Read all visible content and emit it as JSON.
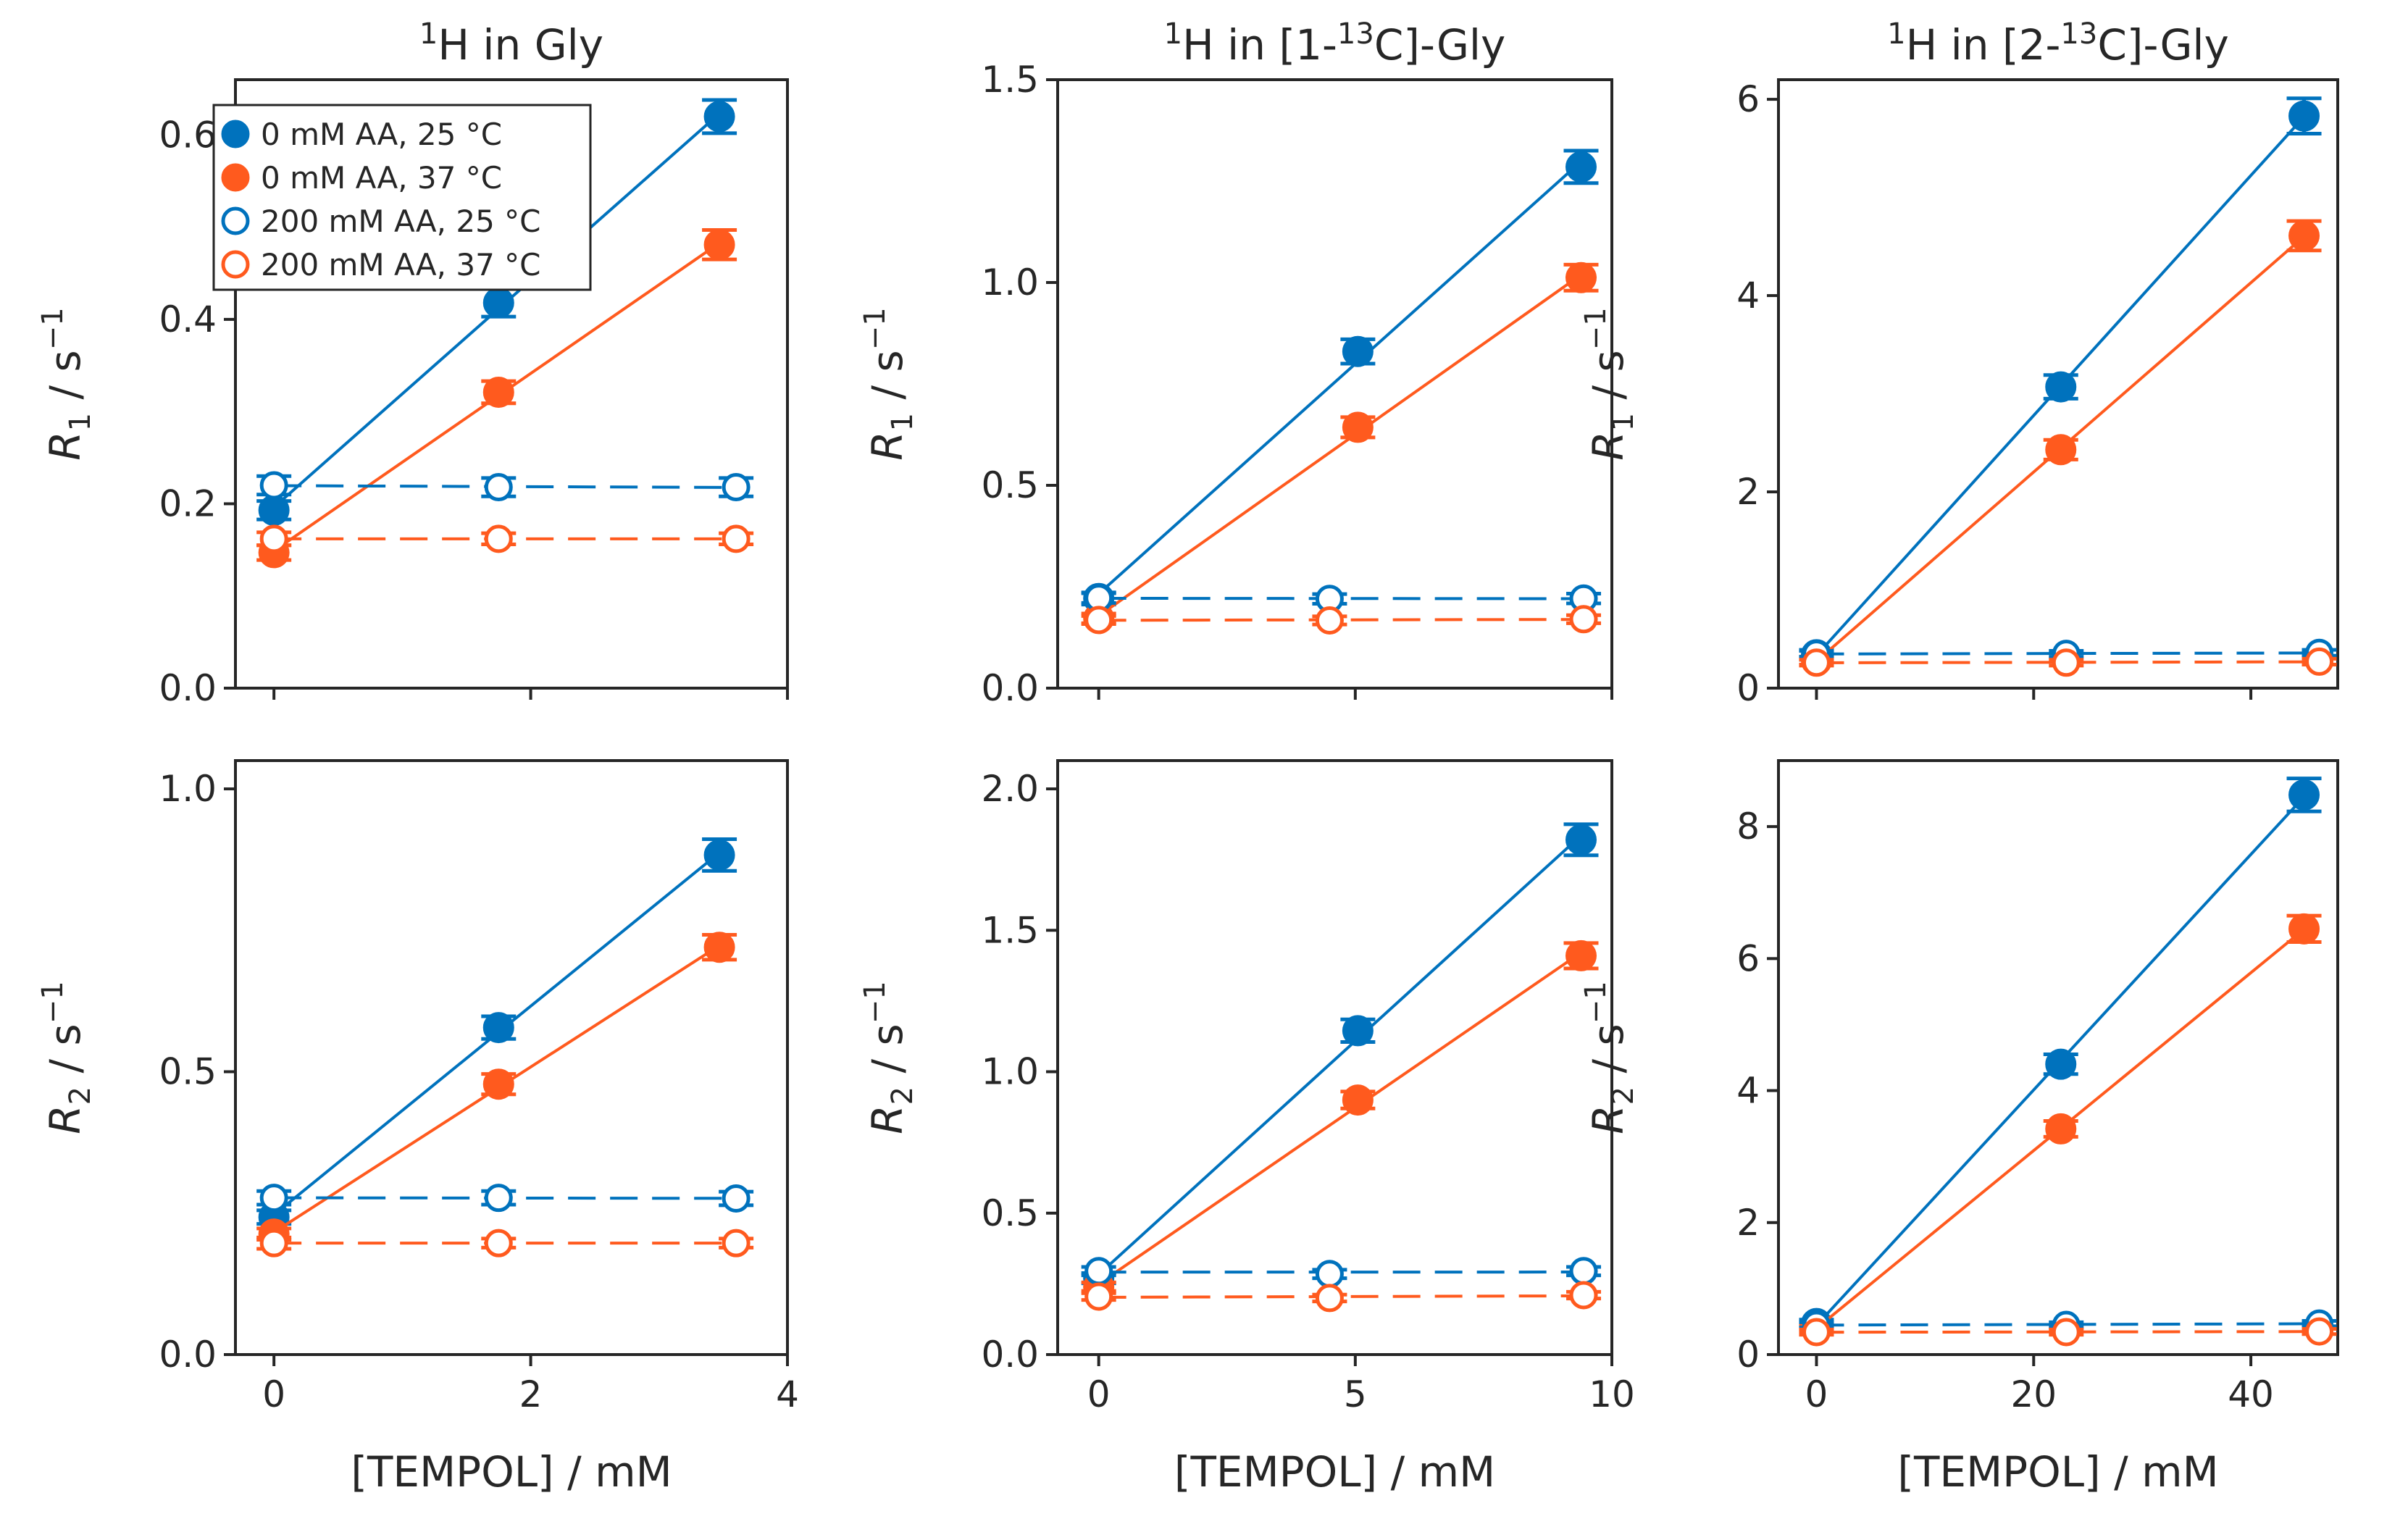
{
  "colors": {
    "blue": "#0072bd",
    "orange": "#ff5a1e",
    "axis": "#262626"
  },
  "legend": [
    {
      "label": "0 mM AA, 25 °C",
      "series": "0mM_25",
      "filled": true,
      "color": "#0072bd"
    },
    {
      "label": "0 mM AA, 37 °C",
      "series": "0mM_37",
      "filled": true,
      "color": "#ff5a1e"
    },
    {
      "label": "200 mM AA, 25 °C",
      "series": "200mM_25",
      "filled": false,
      "color": "#0072bd"
    },
    {
      "label": "200 mM AA, 37 °C",
      "series": "200mM_37",
      "filled": false,
      "color": "#ff5a1e"
    }
  ],
  "chart_data": [
    {
      "id": "r1-gly",
      "type": "scatter",
      "title_sup": "1",
      "title": "H in Gly",
      "ylabel": "R",
      "ylabel_sub": "1",
      "ylabel_unit": " / s",
      "ylabel_exp": "−1",
      "xlabel": "",
      "xlim": [
        -0.3,
        4
      ],
      "ylim": [
        0,
        0.66
      ],
      "xticks": [
        0,
        2,
        4
      ],
      "xtick_labels": [],
      "yticks": [
        0,
        0.2,
        0.4,
        0.6
      ],
      "ytick_labels": [
        "0.0",
        "0.2",
        "0.4",
        "0.6"
      ],
      "series": [
        {
          "name": "0 mM AA, 25 °C",
          "filled": true,
          "color": "#0072bd",
          "x": [
            0,
            1.75,
            3.47
          ],
          "y": [
            0.193,
            0.418,
            0.62
          ],
          "err": [
            0.01,
            0.015,
            0.018
          ]
        },
        {
          "name": "0 mM AA, 37 °C",
          "filled": true,
          "color": "#ff5a1e",
          "x": [
            0,
            1.75,
            3.47
          ],
          "y": [
            0.147,
            0.321,
            0.481
          ],
          "err": [
            0.008,
            0.012,
            0.016
          ]
        },
        {
          "name": "200 mM AA, 25 °C",
          "filled": false,
          "color": "#0072bd",
          "x": [
            0,
            1.75,
            3.6
          ],
          "y": [
            0.22,
            0.218,
            0.218
          ],
          "err": [
            0.01,
            0.01,
            0.01
          ]
        },
        {
          "name": "200 mM AA, 37 °C",
          "filled": false,
          "color": "#ff5a1e",
          "x": [
            0,
            1.75,
            3.6
          ],
          "y": [
            0.162,
            0.162,
            0.162
          ],
          "err": [
            0.007,
            0.006,
            0.006
          ]
        }
      ]
    },
    {
      "id": "r1-1c",
      "type": "scatter",
      "title_sup": "1",
      "title": "H in [1-",
      "title_sup2": "13",
      "title2": "C]-Gly",
      "ylabel": "R",
      "ylabel_sub": "1",
      "ylabel_unit": " / s",
      "ylabel_exp": "−1",
      "xlabel": "",
      "xlim": [
        -0.8,
        10
      ],
      "ylim": [
        0,
        1.5
      ],
      "xticks": [
        0,
        5,
        10
      ],
      "xtick_labels": [],
      "yticks": [
        0,
        0.5,
        1.0,
        1.5
      ],
      "ytick_labels": [
        "0.0",
        "0.5",
        "1.0",
        "1.5"
      ],
      "series": [
        {
          "name": "0 mM AA, 25 °C",
          "filled": true,
          "color": "#0072bd",
          "x": [
            0,
            5.05,
            9.4
          ],
          "y": [
            0.221,
            0.83,
            1.285
          ],
          "err": [
            0.015,
            0.03,
            0.04
          ]
        },
        {
          "name": "0 mM AA, 37 °C",
          "filled": true,
          "color": "#ff5a1e",
          "x": [
            0,
            5.05,
            9.4
          ],
          "y": [
            0.172,
            0.643,
            1.012
          ],
          "err": [
            0.012,
            0.025,
            0.032
          ]
        },
        {
          "name": "200 mM AA, 25 °C",
          "filled": false,
          "color": "#0072bd",
          "x": [
            0,
            4.5,
            9.45
          ],
          "y": [
            0.222,
            0.22,
            0.221
          ],
          "err": [
            0.012,
            0.012,
            0.012
          ]
        },
        {
          "name": "200 mM AA, 37 °C",
          "filled": false,
          "color": "#ff5a1e",
          "x": [
            0,
            4.5,
            9.45
          ],
          "y": [
            0.168,
            0.167,
            0.17
          ],
          "err": [
            0.01,
            0.01,
            0.01
          ]
        }
      ]
    },
    {
      "id": "r1-2c",
      "type": "scatter",
      "title_sup": "1",
      "title": "H in [2-",
      "title_sup2": "13",
      "title2": "C]-Gly",
      "ylabel": "R",
      "ylabel_sub": "1",
      "ylabel_unit": " / s",
      "ylabel_exp": "−1",
      "xlabel": "",
      "xlim": [
        -3.5,
        48
      ],
      "ylim": [
        0,
        6.2
      ],
      "xticks": [
        0,
        20,
        40
      ],
      "xtick_labels": [],
      "yticks": [
        0,
        2,
        4,
        6
      ],
      "ytick_labels": [
        "0",
        "2",
        "4",
        "6"
      ],
      "series": [
        {
          "name": "0 mM AA, 25 °C",
          "filled": true,
          "color": "#0072bd",
          "x": [
            0,
            22.5,
            44.9
          ],
          "y": [
            0.34,
            3.07,
            5.83
          ],
          "err": [
            0.05,
            0.12,
            0.18
          ]
        },
        {
          "name": "0 mM AA, 37 °C",
          "filled": true,
          "color": "#ff5a1e",
          "x": [
            0,
            22.5,
            44.9
          ],
          "y": [
            0.28,
            2.43,
            4.61
          ],
          "err": [
            0.04,
            0.1,
            0.15
          ]
        },
        {
          "name": "200 mM AA, 25 °C",
          "filled": false,
          "color": "#0072bd",
          "x": [
            0,
            23,
            46.3
          ],
          "y": [
            0.35,
            0.35,
            0.36
          ],
          "err": [
            0.03,
            0.03,
            0.03
          ]
        },
        {
          "name": "200 mM AA, 37 °C",
          "filled": false,
          "color": "#ff5a1e",
          "x": [
            0,
            23,
            46.3
          ],
          "y": [
            0.26,
            0.26,
            0.27
          ],
          "err": [
            0.03,
            0.03,
            0.03
          ]
        }
      ]
    },
    {
      "id": "r2-gly",
      "type": "scatter",
      "ylabel": "R",
      "ylabel_sub": "2",
      "ylabel_unit": " / s",
      "ylabel_exp": "−1",
      "xlabel": "[TEMPOL] / mM",
      "xlim": [
        -0.3,
        4
      ],
      "ylim": [
        0,
        1.05
      ],
      "xticks": [
        0,
        2,
        4
      ],
      "xtick_labels": [
        "0",
        "2",
        "4"
      ],
      "yticks": [
        0,
        0.5,
        1.0
      ],
      "ytick_labels": [
        "0.0",
        "0.5",
        "1.0"
      ],
      "series": [
        {
          "name": "0 mM AA, 25 °C",
          "filled": true,
          "color": "#0072bd",
          "x": [
            0,
            1.75,
            3.47
          ],
          "y": [
            0.243,
            0.578,
            0.883
          ],
          "err": [
            0.012,
            0.02,
            0.028
          ]
        },
        {
          "name": "0 mM AA, 37 °C",
          "filled": true,
          "color": "#ff5a1e",
          "x": [
            0,
            1.75,
            3.47
          ],
          "y": [
            0.213,
            0.478,
            0.72
          ],
          "err": [
            0.01,
            0.018,
            0.022
          ]
        },
        {
          "name": "200 mM AA, 25 °C",
          "filled": false,
          "color": "#0072bd",
          "x": [
            0,
            1.75,
            3.6
          ],
          "y": [
            0.277,
            0.277,
            0.276
          ],
          "err": [
            0.012,
            0.012,
            0.012
          ]
        },
        {
          "name": "200 mM AA, 37 °C",
          "filled": false,
          "color": "#ff5a1e",
          "x": [
            0,
            1.75,
            3.6
          ],
          "y": [
            0.197,
            0.197,
            0.197
          ],
          "err": [
            0.01,
            0.008,
            0.008
          ]
        }
      ]
    },
    {
      "id": "r2-1c",
      "type": "scatter",
      "ylabel": "R",
      "ylabel_sub": "2",
      "ylabel_unit": " / s",
      "ylabel_exp": "−1",
      "xlabel": "[TEMPOL] / mM",
      "xlim": [
        -0.8,
        10
      ],
      "ylim": [
        0,
        2.1
      ],
      "xticks": [
        0,
        5,
        10
      ],
      "xtick_labels": [
        "0",
        "5",
        "10"
      ],
      "yticks": [
        0,
        0.5,
        1.0,
        1.5,
        2.0
      ],
      "ytick_labels": [
        "0.0",
        "0.5",
        "1.0",
        "1.5",
        "2.0"
      ],
      "series": [
        {
          "name": "0 mM AA, 25 °C",
          "filled": true,
          "color": "#0072bd",
          "x": [
            0,
            5.05,
            9.4
          ],
          "y": [
            0.27,
            1.145,
            1.82
          ],
          "err": [
            0.018,
            0.04,
            0.055
          ]
        },
        {
          "name": "0 mM AA, 37 °C",
          "filled": true,
          "color": "#ff5a1e",
          "x": [
            0,
            5.05,
            9.4
          ],
          "y": [
            0.24,
            0.9,
            1.41
          ],
          "err": [
            0.015,
            0.03,
            0.045
          ]
        },
        {
          "name": "200 mM AA, 25 °C",
          "filled": false,
          "color": "#0072bd",
          "x": [
            0,
            4.5,
            9.45
          ],
          "y": [
            0.295,
            0.285,
            0.295
          ],
          "err": [
            0.015,
            0.015,
            0.015
          ]
        },
        {
          "name": "200 mM AA, 37 °C",
          "filled": false,
          "color": "#ff5a1e",
          "x": [
            0,
            4.5,
            9.45
          ],
          "y": [
            0.205,
            0.2,
            0.21
          ],
          "err": [
            0.012,
            0.012,
            0.012
          ]
        }
      ]
    },
    {
      "id": "r2-2c",
      "type": "scatter",
      "ylabel": "R",
      "ylabel_sub": "2",
      "ylabel_unit": " / s",
      "ylabel_exp": "−1",
      "xlabel": "[TEMPOL] / mM",
      "xlim": [
        -3.5,
        48
      ],
      "ylim": [
        0,
        9
      ],
      "xticks": [
        0,
        20,
        40
      ],
      "xtick_labels": [
        "0",
        "20",
        "40"
      ],
      "yticks": [
        0,
        2,
        4,
        6,
        8
      ],
      "ytick_labels": [
        "0",
        "2",
        "4",
        "6",
        "8"
      ],
      "series": [
        {
          "name": "0 mM AA, 25 °C",
          "filled": true,
          "color": "#0072bd",
          "x": [
            0,
            22.5,
            44.9
          ],
          "y": [
            0.47,
            4.4,
            8.48
          ],
          "err": [
            0.06,
            0.15,
            0.25
          ]
        },
        {
          "name": "0 mM AA, 37 °C",
          "filled": true,
          "color": "#ff5a1e",
          "x": [
            0,
            22.5,
            44.9
          ],
          "y": [
            0.4,
            3.42,
            6.45
          ],
          "err": [
            0.05,
            0.12,
            0.2
          ]
        },
        {
          "name": "200 mM AA, 25 °C",
          "filled": false,
          "color": "#0072bd",
          "x": [
            0,
            23,
            46.3
          ],
          "y": [
            0.45,
            0.45,
            0.47
          ],
          "err": [
            0.04,
            0.04,
            0.04
          ]
        },
        {
          "name": "200 mM AA, 37 °C",
          "filled": false,
          "color": "#ff5a1e",
          "x": [
            0,
            23,
            46.3
          ],
          "y": [
            0.34,
            0.34,
            0.35
          ],
          "err": [
            0.04,
            0.04,
            0.04
          ]
        }
      ]
    }
  ]
}
